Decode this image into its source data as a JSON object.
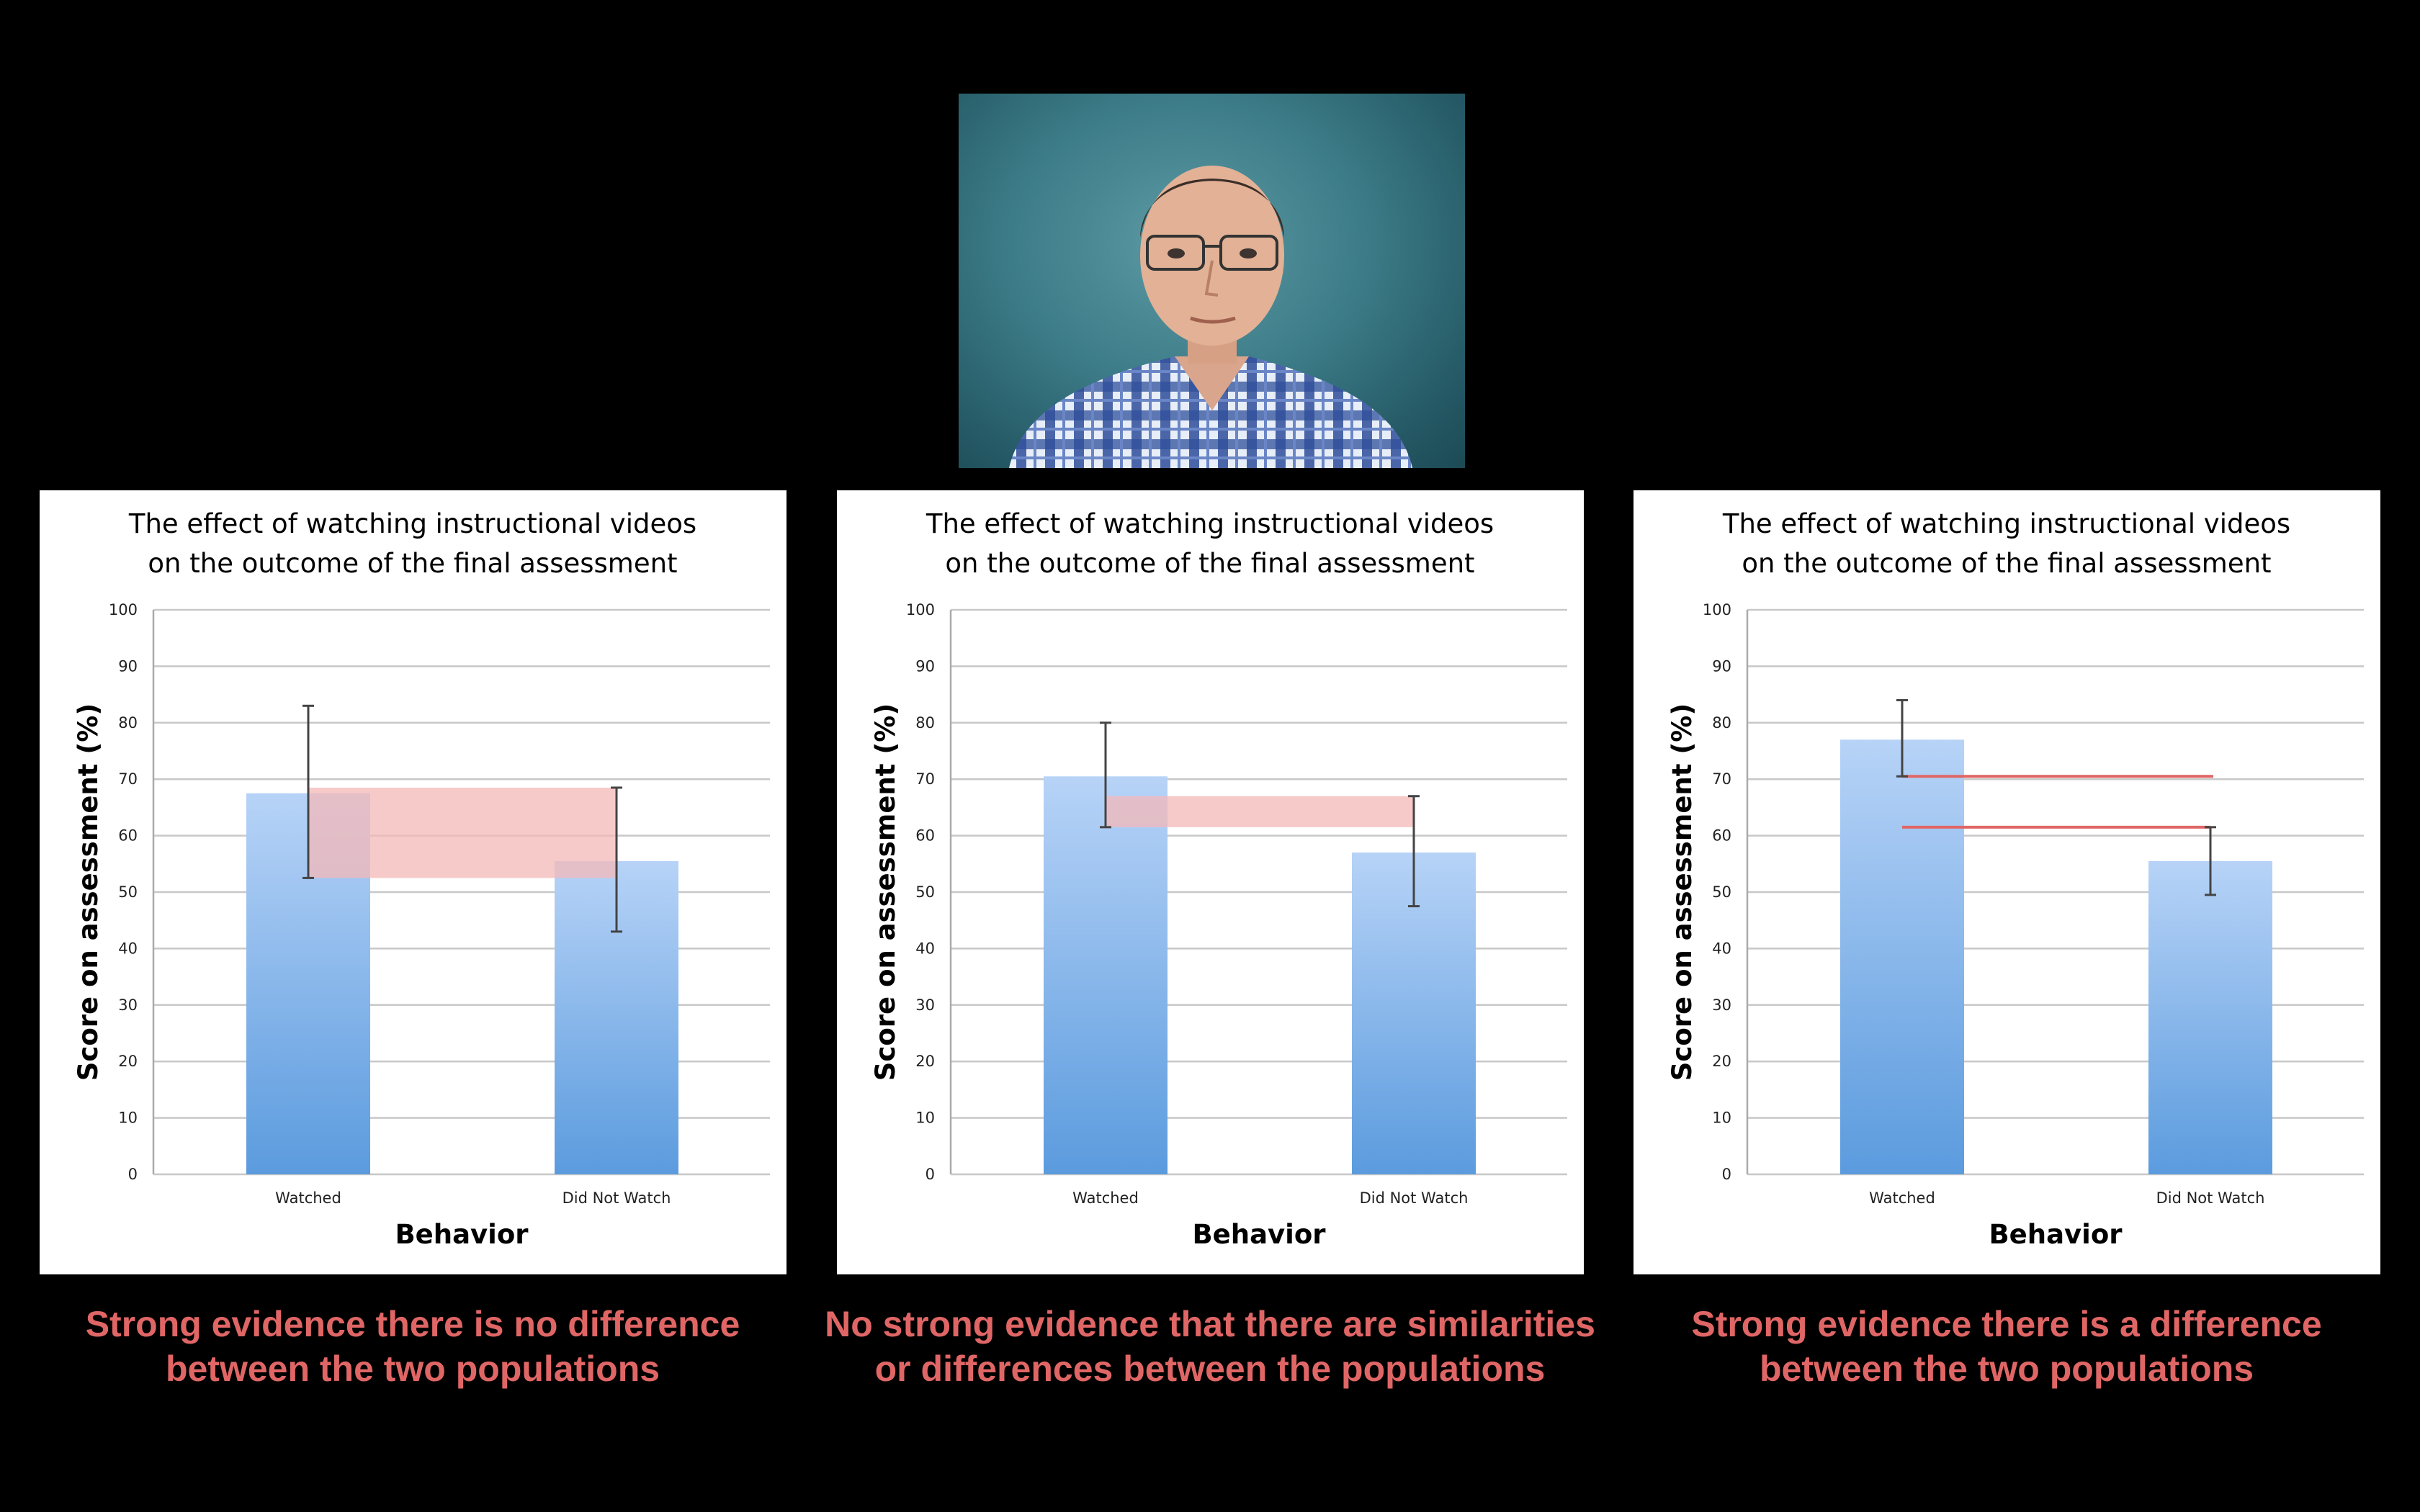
{
  "chart_data": [
    {
      "type": "bar",
      "title": [
        "The effect of watching instructional videos",
        "on the outcome of the final assessment"
      ],
      "xlabel": "Behavior",
      "ylabel": "Score on assessment (%)",
      "ylim": [
        0,
        100
      ],
      "yticks": [
        0,
        10,
        20,
        30,
        40,
        50,
        60,
        70,
        80,
        90,
        100
      ],
      "categories": [
        "Watched",
        "Did Not Watch"
      ],
      "values": [
        67.5,
        55.5
      ],
      "error_bars": [
        {
          "low": 52.5,
          "high": 83
        },
        {
          "low": 43,
          "high": 68.5
        }
      ],
      "overlap_band": {
        "low": 52.5,
        "high": 68.5
      },
      "caption": [
        "Strong evidence there is no difference",
        "between the two populations"
      ]
    },
    {
      "type": "bar",
      "title": [
        "The effect of watching instructional videos",
        "on the outcome of the final assessment"
      ],
      "xlabel": "Behavior",
      "ylabel": "Score on assessment (%)",
      "ylim": [
        0,
        100
      ],
      "yticks": [
        0,
        10,
        20,
        30,
        40,
        50,
        60,
        70,
        80,
        90,
        100
      ],
      "categories": [
        "Watched",
        "Did Not Watch"
      ],
      "values": [
        70.5,
        57
      ],
      "error_bars": [
        {
          "low": 61.5,
          "high": 80
        },
        {
          "low": 47.5,
          "high": 67
        }
      ],
      "overlap_band": {
        "low": 61.5,
        "high": 67
      },
      "caption": [
        "No strong evidence that there are similarities",
        "or differences between the populations"
      ]
    },
    {
      "type": "bar",
      "title": [
        "The effect of watching instructional videos",
        "on the outcome of the final assessment"
      ],
      "xlabel": "Behavior",
      "ylabel": "Score on assessment (%)",
      "ylim": [
        0,
        100
      ],
      "yticks": [
        0,
        10,
        20,
        30,
        40,
        50,
        60,
        70,
        80,
        90,
        100
      ],
      "categories": [
        "Watched",
        "Did Not Watch"
      ],
      "values": [
        77,
        55.5
      ],
      "error_bars": [
        {
          "low": 70.5,
          "high": 84
        },
        {
          "low": 49.5,
          "high": 61.5
        }
      ],
      "gap_lines": [
        70.5,
        61.5
      ],
      "caption": [
        "Strong evidence there is a difference",
        "between the two populations"
      ]
    }
  ],
  "colors": {
    "highlight": "#e06666",
    "band": "#f4b8b8",
    "bar_top": "#b7d3f7",
    "bar_bottom": "#5b9bde"
  }
}
